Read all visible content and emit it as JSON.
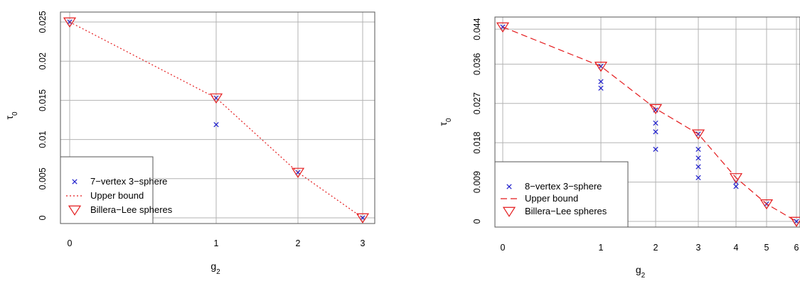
{
  "chart_data": [
    {
      "type": "scatter",
      "xlabel": "g",
      "xlabel_sub": "2",
      "ylabel": "τ",
      "ylabel_sub": "0",
      "xlim": [
        0,
        3
      ],
      "ylim": [
        0,
        0.025
      ],
      "x_ticks": [
        0,
        1,
        2,
        3
      ],
      "x_tick_labels": [
        "0",
        "1",
        "2",
        "3"
      ],
      "y_ticks": [
        0,
        0.005,
        0.01,
        0.015,
        0.02,
        0.025
      ],
      "y_tick_labels": [
        "0",
        "0.005",
        "0.01",
        "0.015",
        "0.02",
        "0.025"
      ],
      "grid": true,
      "legend": "bottom-left",
      "series": [
        {
          "name": "7−vertex 3−sphere",
          "kind": "points",
          "marker": "x",
          "color": "#1f1fcc",
          "x": [
            0,
            1,
            1,
            2,
            3
          ],
          "y": [
            0.025,
            0.0153,
            0.0119,
            0.0058,
            0.0
          ]
        },
        {
          "name": "Upper bound",
          "kind": "line",
          "dash": "dotted",
          "color": "#e41a1c",
          "x": [
            0,
            1,
            2,
            3
          ],
          "y": [
            0.025,
            0.0153,
            0.0058,
            0.0
          ]
        },
        {
          "name": "Billera−Lee spheres",
          "kind": "points",
          "marker": "triangle-down",
          "color": "#e41a1c",
          "x": [
            0,
            1,
            2,
            3
          ],
          "y": [
            0.025,
            0.0153,
            0.0058,
            0.0
          ]
        }
      ]
    },
    {
      "type": "scatter",
      "xlabel": "g",
      "xlabel_sub": "2",
      "ylabel": "τ",
      "ylabel_sub": "0",
      "xlim": [
        0,
        6
      ],
      "ylim": [
        0,
        0.0445
      ],
      "x_ticks": [
        0,
        1,
        2,
        3,
        4,
        5,
        6
      ],
      "x_tick_labels": [
        "0",
        "1",
        "2",
        "3",
        "4",
        "5",
        "6"
      ],
      "y_ticks": [
        0,
        0.009,
        0.018,
        0.027,
        0.036,
        0.044
      ],
      "y_tick_labels": [
        "0",
        "0.009",
        "0.018",
        "0.027",
        "0.036",
        "0.044"
      ],
      "grid": true,
      "legend": "bottom-left",
      "series": [
        {
          "name": "8−vertex 3−sphere",
          "kind": "points",
          "marker": "x",
          "color": "#1f1fcc",
          "x": [
            0,
            1,
            1,
            1,
            2,
            2,
            2,
            2,
            3,
            3,
            3,
            3,
            3,
            4,
            4,
            5,
            6
          ],
          "y": [
            0.0445,
            0.0355,
            0.032,
            0.0305,
            0.0255,
            0.0225,
            0.0205,
            0.0165,
            0.02,
            0.0165,
            0.0145,
            0.0125,
            0.01,
            0.009,
            0.008,
            0.004,
            0.0
          ]
        },
        {
          "name": "Upper bound",
          "kind": "line",
          "dash": "dashed",
          "color": "#e41a1c",
          "x": [
            0,
            1,
            2,
            3,
            4,
            5,
            6
          ],
          "y": [
            0.0445,
            0.0355,
            0.0258,
            0.02,
            0.01,
            0.004,
            0.0
          ]
        },
        {
          "name": "Billera−Lee spheres",
          "kind": "points",
          "marker": "triangle-down",
          "color": "#e41a1c",
          "x": [
            0,
            1,
            2,
            3,
            4,
            5,
            6
          ],
          "y": [
            0.0445,
            0.0355,
            0.0258,
            0.02,
            0.01,
            0.004,
            0.0
          ]
        }
      ]
    }
  ]
}
